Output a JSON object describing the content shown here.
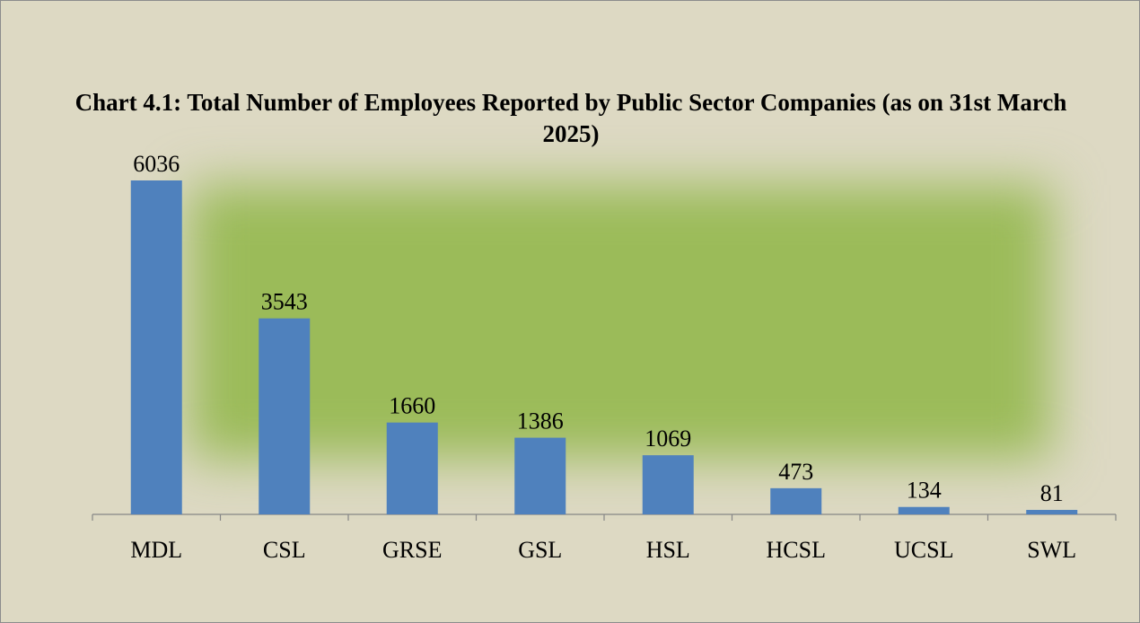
{
  "chart_data": {
    "type": "bar",
    "title": "Chart 4.1: Total Number of Employees Reported by Public Sector Companies (as on 31st March 2025)",
    "categories": [
      "MDL",
      "CSL",
      "GRSE",
      "GSL",
      "HSL",
      "HCSL",
      "UCSL",
      "SWL"
    ],
    "values": [
      6036,
      3543,
      1660,
      1386,
      1069,
      473,
      134,
      81
    ],
    "color": "#4f81bd"
  }
}
